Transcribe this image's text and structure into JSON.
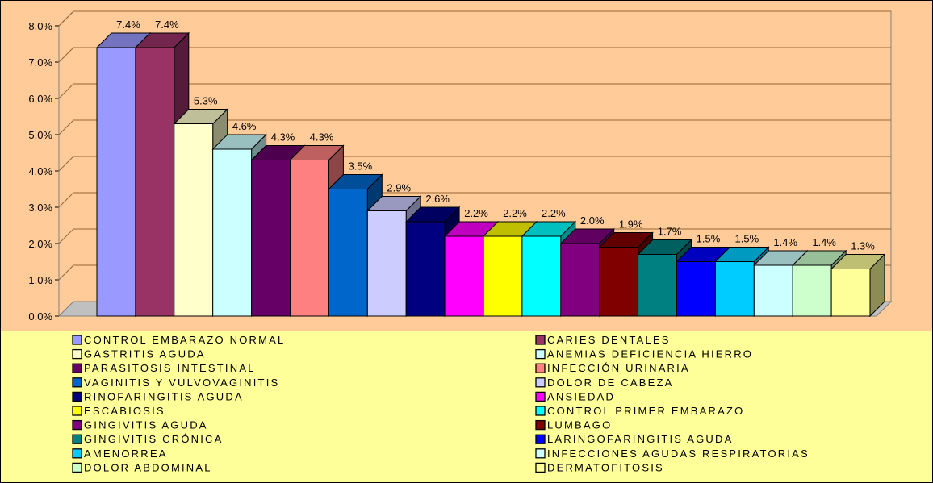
{
  "colors": {
    "chart_area": "#FFCC99",
    "plot_area": "#FFCC99",
    "legend_area": "#FFFF99",
    "gridline": "#996633",
    "frame": "#000000"
  },
  "chart_data": {
    "type": "bar",
    "style": "3d-clustered",
    "title": "",
    "xlabel": "",
    "ylabel": "",
    "ylim": [
      0,
      8
    ],
    "y_ticks": [
      "0.0%",
      "1.0%",
      "2.0%",
      "3.0%",
      "4.0%",
      "5.0%",
      "6.0%",
      "7.0%",
      "8.0%"
    ],
    "grid": true,
    "legend_position": "bottom",
    "value_suffix": "%",
    "series": [
      {
        "name": "CONTROL EMBARAZO NORMAL",
        "value": 7.4,
        "label": "7.4%",
        "color": "#9999FF"
      },
      {
        "name": "CARIES DENTALES",
        "value": 7.4,
        "label": "7.4%",
        "color": "#993366"
      },
      {
        "name": "GASTRITIS AGUDA",
        "value": 5.3,
        "label": "5.3%",
        "color": "#FFFFCC"
      },
      {
        "name": "ANEMIAS DEFICIENCIA HIERRO",
        "value": 4.6,
        "label": "4.6%",
        "color": "#CCFFFF"
      },
      {
        "name": "PARASITOSIS INTESTINAL",
        "value": 4.3,
        "label": "4.3%",
        "color": "#660066"
      },
      {
        "name": "INFECCIÓN URINARIA",
        "value": 4.3,
        "label": "4.3%",
        "color": "#FF8080"
      },
      {
        "name": "VAGINITIS Y VULVOVAGINITIS",
        "value": 3.5,
        "label": "3.5%",
        "color": "#0066CC"
      },
      {
        "name": "DOLOR DE CABEZA",
        "value": 2.9,
        "label": "2.9%",
        "color": "#CCCCFF"
      },
      {
        "name": "RINOFARINGITIS AGUDA",
        "value": 2.6,
        "label": "2.6%",
        "color": "#000080"
      },
      {
        "name": "ANSIEDAD",
        "value": 2.2,
        "label": "2.2%",
        "color": "#FF00FF"
      },
      {
        "name": "ESCABIOSIS",
        "value": 2.2,
        "label": "2.2%",
        "color": "#FFFF00"
      },
      {
        "name": "CONTROL PRIMER EMBARAZO",
        "value": 2.2,
        "label": "2.2%",
        "color": "#00FFFF"
      },
      {
        "name": "GINGIVITIS AGUDA",
        "value": 2.0,
        "label": "2.0%",
        "color": "#800080"
      },
      {
        "name": "LUMBAGO",
        "value": 1.9,
        "label": "1.9%",
        "color": "#800000"
      },
      {
        "name": "GINGIVITIS CRÓNICA",
        "value": 1.7,
        "label": "1.7%",
        "color": "#008080"
      },
      {
        "name": "LARINGOFARINGITIS AGUDA",
        "value": 1.5,
        "label": "1.5%",
        "color": "#0000FF"
      },
      {
        "name": "AMENORREA",
        "value": 1.5,
        "label": "1.5%",
        "color": "#00CCFF"
      },
      {
        "name": "INFECCIONES AGUDAS RESPIRATORIAS",
        "value": 1.4,
        "label": "1.4%",
        "color": "#CCFFFF"
      },
      {
        "name": "DOLOR ABDOMINAL",
        "value": 1.4,
        "label": "1.4%",
        "color": "#CCFFCC"
      },
      {
        "name": "DERMATOFITOSIS",
        "value": 1.3,
        "label": "1.3%",
        "color": "#FFFF99"
      }
    ]
  }
}
